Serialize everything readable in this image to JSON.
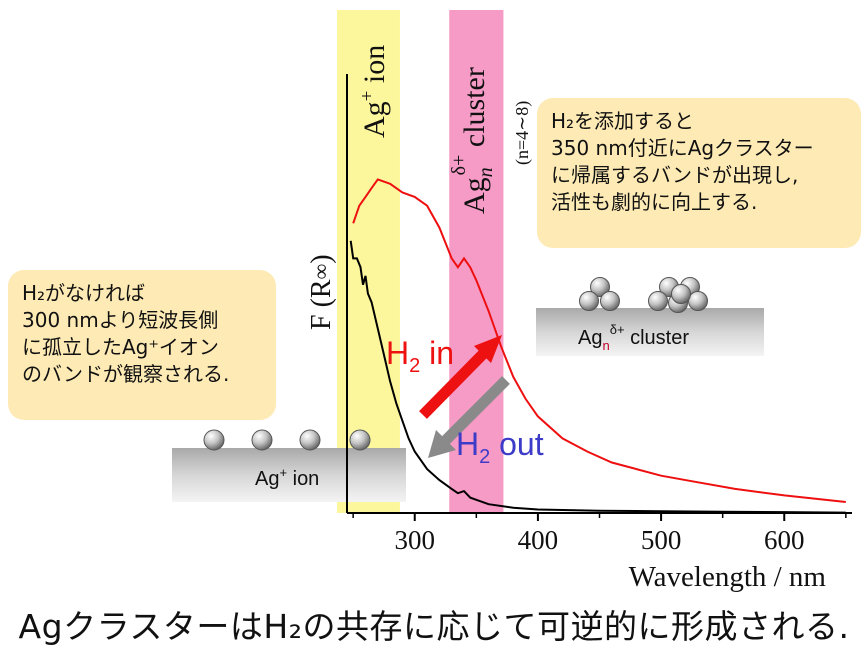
{
  "figure": {
    "band_ion_label": {
      "main": "Ag",
      "sup": "+",
      "rest": " ion"
    },
    "band_cluster_label": {
      "main": "Ag",
      "sub": "n",
      "sup": "δ+",
      "rest": " cluster",
      "note": "(n=4∼8)"
    },
    "ylabel": "F (R∞)",
    "ylabel_main": "F (R",
    "ylabel_inf": "∞",
    "ylabel_close": ")",
    "h2_in": {
      "h": "H",
      "sub": "2",
      "rest": " in"
    },
    "h2_out": {
      "h": "H",
      "sub": "2",
      "rest": " out"
    },
    "ion_surface_label": {
      "main": "Ag",
      "sup": "+",
      "rest": " ion"
    },
    "cluster_surface_label": {
      "main": "Ag",
      "sub": "n",
      "sup": "δ+",
      "rest": " cluster"
    },
    "note_left_lines": [
      "H₂がなければ",
      "300 nmより短波長側",
      "に孤立したAg⁺イオン",
      "のバンドが観察される."
    ],
    "note_right_lines": [
      "H₂を添加すると",
      "350 nm付近にAgクラスター",
      "に帰属するバンドが出現し,",
      "活性も劇的に向上する."
    ],
    "caption": "AgクラスターはH₂の共存に応じて可逆的に形成される.",
    "colors": {
      "ion_band": "#fbf68c",
      "cluster_band": "#f58fc0",
      "red_curve": "#ee1010",
      "black_curve": "#000000",
      "h2_in": "#ee1111",
      "h2_out": "#3c3cc8",
      "note_bg": "#fdeab5"
    }
  },
  "chart_data": {
    "type": "line",
    "xlabel": "Wavelength / nm",
    "ylabel": "F (R∞)",
    "xlim": [
      245,
      655
    ],
    "x_ticks": [
      300,
      400,
      500,
      600
    ],
    "shaded_bands": [
      {
        "label": "Ag+ ion",
        "x_range": [
          245,
          288
        ]
      },
      {
        "label": "Agnδ+ cluster",
        "x_range": [
          328,
          372
        ]
      }
    ],
    "series": [
      {
        "name": "",
        "color": "#ee1010",
        "x": [
          250,
          255,
          260,
          265,
          270,
          280,
          290,
          300,
          310,
          320,
          330,
          335,
          340,
          345,
          350,
          360,
          370,
          380,
          390,
          400,
          420,
          440,
          460,
          480,
          500,
          530,
          560,
          600,
          650
        ],
        "y": [
          0.66,
          0.7,
          0.72,
          0.74,
          0.76,
          0.75,
          0.73,
          0.72,
          0.7,
          0.65,
          0.58,
          0.56,
          0.58,
          0.56,
          0.53,
          0.46,
          0.38,
          0.31,
          0.26,
          0.22,
          0.17,
          0.14,
          0.115,
          0.1,
          0.085,
          0.07,
          0.055,
          0.04,
          0.025
        ]
      },
      {
        "name": "",
        "color": "#000000",
        "x": [
          248,
          250,
          253,
          256,
          258,
          260,
          262,
          265,
          270,
          275,
          280,
          285,
          290,
          295,
          300,
          310,
          320,
          330,
          335,
          340,
          345,
          350,
          360,
          380,
          400,
          450,
          500,
          550,
          600,
          650
        ],
        "y": [
          0.62,
          0.58,
          0.58,
          0.56,
          0.52,
          0.54,
          0.5,
          0.48,
          0.42,
          0.36,
          0.3,
          0.25,
          0.21,
          0.17,
          0.14,
          0.1,
          0.075,
          0.055,
          0.045,
          0.05,
          0.035,
          0.03,
          0.02,
          0.012,
          0.008,
          0.005,
          0.004,
          0.003,
          0.002,
          0.001
        ]
      }
    ]
  }
}
